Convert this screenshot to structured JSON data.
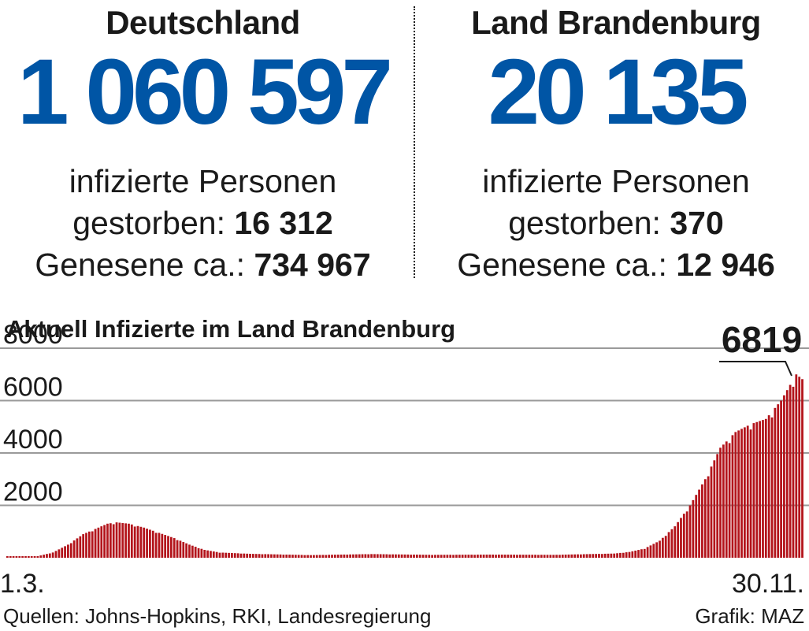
{
  "germany": {
    "region": "Deutschland",
    "infected_total": "1 060 597",
    "infected_label": "infizierte Personen",
    "deaths_label": "gestorben:",
    "deaths": "16 312",
    "recovered_label": "Genesene ca.:",
    "recovered": "734 967"
  },
  "brandenburg": {
    "region": "Land Brandenburg",
    "infected_total": "20 135",
    "infected_label": "infizierte Personen",
    "deaths_label": "gestorben:",
    "deaths": "370",
    "recovered_label": "Genesene ca.:",
    "recovered": "12 946"
  },
  "colors": {
    "blue": "#0055a5",
    "bar": "#b3141b",
    "grid": "#9a9a9a"
  },
  "chart_data": {
    "type": "bar",
    "title": "Aktuell Infizierte im Land Brandenburg",
    "xlabel": "",
    "ylabel": "",
    "ylim": [
      0,
      8000
    ],
    "yticks": [
      2000,
      4000,
      6000,
      8000
    ],
    "x_start_label": "1.3.",
    "x_end_label": "30.11.",
    "last_value_label": "6819",
    "series": [
      {
        "name": "Aktuell Infizierte",
        "anchors": [
          [
            0,
            0
          ],
          [
            10,
            60
          ],
          [
            15,
            200
          ],
          [
            20,
            500
          ],
          [
            25,
            900
          ],
          [
            30,
            1150
          ],
          [
            33,
            1300
          ],
          [
            36,
            1350
          ],
          [
            40,
            1300
          ],
          [
            45,
            1150
          ],
          [
            50,
            950
          ],
          [
            55,
            750
          ],
          [
            60,
            500
          ],
          [
            65,
            300
          ],
          [
            70,
            200
          ],
          [
            80,
            150
          ],
          [
            100,
            100
          ],
          [
            120,
            140
          ],
          [
            140,
            110
          ],
          [
            160,
            120
          ],
          [
            180,
            110
          ],
          [
            200,
            160
          ],
          [
            205,
            220
          ],
          [
            210,
            350
          ],
          [
            215,
            650
          ],
          [
            220,
            1200
          ],
          [
            225,
            2000
          ],
          [
            230,
            3000
          ],
          [
            235,
            4200
          ],
          [
            240,
            4800
          ],
          [
            245,
            5100
          ],
          [
            250,
            5300
          ],
          [
            255,
            6000
          ],
          [
            260,
            7000
          ],
          [
            262,
            6819
          ]
        ]
      }
    ],
    "n_points": 263
  },
  "footer": {
    "source": "Quellen: Johns-Hopkins, RKI, Landesregierung",
    "credit": "Grafik: MAZ"
  }
}
